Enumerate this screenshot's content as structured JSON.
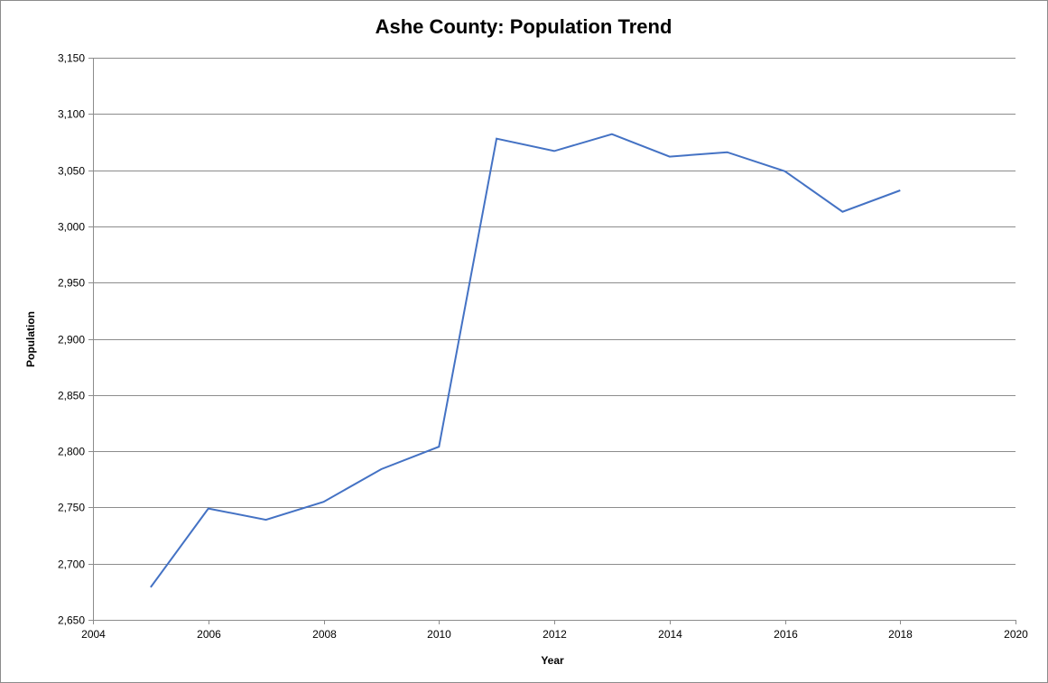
{
  "chart_data": {
    "type": "line",
    "title": "Ashe County: Population Trend",
    "xlabel": "Year",
    "ylabel": "Population",
    "xlim": [
      2004,
      2020
    ],
    "ylim": [
      2650,
      3150
    ],
    "xticks": [
      2004,
      2006,
      2008,
      2010,
      2012,
      2014,
      2016,
      2018,
      2020
    ],
    "yticks": [
      2650,
      2700,
      2750,
      2800,
      2850,
      2900,
      2950,
      3000,
      3050,
      3100,
      3150
    ],
    "xtick_labels": [
      "2004",
      "2006",
      "2008",
      "2010",
      "2012",
      "2014",
      "2016",
      "2018",
      "2020"
    ],
    "ytick_labels": [
      "2,650",
      "2,700",
      "2,750",
      "2,800",
      "2,850",
      "2,900",
      "2,950",
      "3,000",
      "3,050",
      "3,100",
      "3,150"
    ],
    "grid": "horizontal major gridlines",
    "legend": "none",
    "series": [
      {
        "color": "#4472c4",
        "x": [
          2005,
          2006,
          2007,
          2008,
          2009,
          2010,
          2011,
          2012,
          2013,
          2014,
          2015,
          2016,
          2017,
          2018
        ],
        "y": [
          2679,
          2749,
          2739,
          2755,
          2784,
          2804,
          3078,
          3067,
          3082,
          3062,
          3066,
          3049,
          3013,
          3032
        ]
      }
    ]
  }
}
